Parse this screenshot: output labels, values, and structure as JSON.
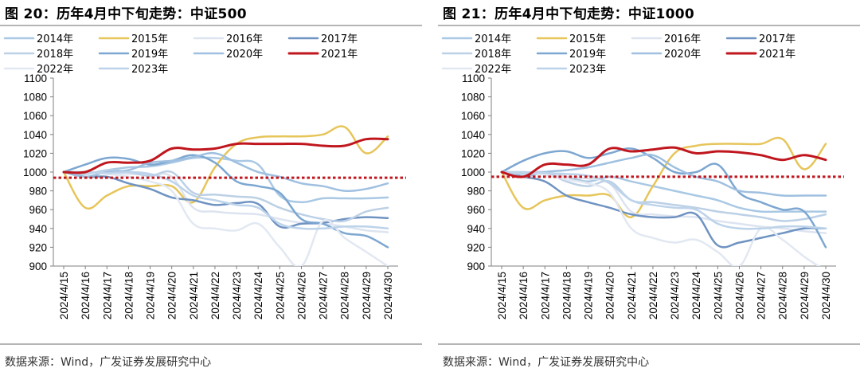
{
  "source": "数据来源：Wind，广发证券发展研究中心",
  "colors": {
    "2014": "#a9c8e4",
    "2015": "#e6c55a",
    "2016": "#dde4f0",
    "2017": "#6f93c2",
    "2018": "#bcd0e6",
    "2019": "#7da7d1",
    "2020": "#9fc0e0",
    "2021": "#c0161e",
    "2022": "#e2e8f2",
    "2023": "#bdd3ea",
    "ref": "#c0161e"
  },
  "chart_data": [
    {
      "type": "line",
      "title": "图 20：历年4月中下旬走势：中证500",
      "x": [
        "2024/4/15",
        "2024/4/16",
        "2024/4/17",
        "2024/4/18",
        "2024/4/19",
        "2024/4/20",
        "2024/4/21",
        "2024/4/22",
        "2024/4/23",
        "2024/4/24",
        "2024/4/25",
        "2024/4/26",
        "2024/4/27",
        "2024/4/28",
        "2024/4/29",
        "2024/4/30"
      ],
      "ylim": [
        900,
        1100
      ],
      "yticks": [
        900,
        920,
        940,
        960,
        980,
        1000,
        1020,
        1040,
        1060,
        1080,
        1100
      ],
      "reference_line": 994,
      "series": [
        {
          "name": "2014年",
          "color_key": "2014",
          "values": [
            1000,
            998,
            1002,
            1005,
            1006,
            1010,
            1015,
            1015,
            1012,
            1008,
            975,
            968,
            972,
            972,
            972,
            973
          ]
        },
        {
          "name": "2015年",
          "color_key": "2015",
          "values": [
            1000,
            962,
            975,
            985,
            985,
            985,
            968,
            1005,
            1030,
            1037,
            1038,
            1038,
            1040,
            1048,
            1020,
            1038
          ]
        },
        {
          "name": "2016年",
          "color_key": "2016",
          "values": [
            1000,
            1000,
            999,
            998,
            997,
            995,
            962,
            958,
            956,
            955,
            950,
            946,
            945,
            942,
            938,
            936
          ]
        },
        {
          "name": "2017年",
          "color_key": "2017",
          "values": [
            1000,
            995,
            995,
            988,
            982,
            973,
            970,
            965,
            967,
            966,
            942,
            945,
            946,
            950,
            952,
            951
          ]
        },
        {
          "name": "2018年",
          "color_key": "2018",
          "values": [
            1000,
            998,
            1002,
            1000,
            996,
            1000,
            978,
            976,
            974,
            972,
            962,
            955,
            950,
            948,
            958,
            962
          ]
        },
        {
          "name": "2019年",
          "color_key": "2019",
          "values": [
            1000,
            1008,
            1015,
            1014,
            1008,
            1012,
            1018,
            1010,
            990,
            985,
            978,
            950,
            945,
            935,
            932,
            920
          ]
        },
        {
          "name": "2020年",
          "color_key": "2020",
          "values": [
            1000,
            995,
            1000,
            1002,
            1010,
            1012,
            1016,
            1020,
            1010,
            1000,
            995,
            988,
            985,
            980,
            982,
            988
          ]
        },
        {
          "name": "2021年",
          "color_key": "2021",
          "values": [
            1000,
            1000,
            1010,
            1010,
            1012,
            1025,
            1024,
            1025,
            1030,
            1030,
            1030,
            1030,
            1028,
            1028,
            1035,
            1035
          ]
        },
        {
          "name": "2022年",
          "color_key": "2022",
          "values": [
            1000,
            1000,
            998,
            995,
            990,
            980,
            945,
            940,
            938,
            945,
            920,
            900,
            948,
            930,
            915,
            900
          ]
        },
        {
          "name": "2023年",
          "color_key": "2023",
          "values": [
            1000,
            1000,
            999,
            1000,
            998,
            990,
            975,
            970,
            965,
            962,
            945,
            940,
            940,
            942,
            942,
            940
          ]
        }
      ]
    },
    {
      "type": "line",
      "title": "图 21：历年4月中下旬走势：中证1000",
      "x": [
        "2024/4/15",
        "2024/4/16",
        "2024/4/17",
        "2024/4/18",
        "2024/4/19",
        "2024/4/20",
        "2024/4/21",
        "2024/4/22",
        "2024/4/23",
        "2024/4/24",
        "2024/4/25",
        "2024/4/26",
        "2024/4/27",
        "2024/4/28",
        "2024/4/29",
        "2024/4/30"
      ],
      "ylim": [
        900,
        1100
      ],
      "yticks": [
        900,
        920,
        940,
        960,
        980,
        1000,
        1020,
        1040,
        1060,
        1080,
        1100
      ],
      "reference_line": 995,
      "series": [
        {
          "name": "2014年",
          "color_key": "2014",
          "values": [
            1000,
            998,
            1000,
            995,
            990,
            995,
            990,
            985,
            980,
            975,
            970,
            962,
            958,
            958,
            958,
            958
          ]
        },
        {
          "name": "2015年",
          "color_key": "2015",
          "values": [
            1000,
            962,
            970,
            975,
            975,
            975,
            952,
            985,
            1020,
            1028,
            1030,
            1030,
            1030,
            1035,
            1003,
            1030
          ]
        },
        {
          "name": "2016年",
          "color_key": "2016",
          "values": [
            1000,
            1000,
            998,
            995,
            993,
            988,
            958,
            955,
            953,
            952,
            948,
            945,
            942,
            940,
            937,
            935
          ]
        },
        {
          "name": "2017年",
          "color_key": "2017",
          "values": [
            1000,
            995,
            990,
            975,
            968,
            962,
            955,
            952,
            952,
            955,
            922,
            925,
            930,
            935,
            940,
            940
          ]
        },
        {
          "name": "2018年",
          "color_key": "2018",
          "values": [
            1000,
            998,
            1000,
            990,
            985,
            990,
            970,
            968,
            965,
            962,
            958,
            955,
            952,
            948,
            950,
            955
          ]
        },
        {
          "name": "2019年",
          "color_key": "2019",
          "values": [
            1000,
            1012,
            1020,
            1022,
            1015,
            1020,
            1025,
            1015,
            1000,
            1000,
            1008,
            978,
            968,
            960,
            958,
            920
          ]
        },
        {
          "name": "2020年",
          "color_key": "2020",
          "values": [
            1000,
            995,
            1000,
            1002,
            1005,
            1010,
            1015,
            1018,
            1005,
            995,
            990,
            980,
            978,
            975,
            975,
            975
          ]
        },
        {
          "name": "2021年",
          "color_key": "2021",
          "values": [
            1000,
            995,
            1008,
            1008,
            1008,
            1025,
            1022,
            1024,
            1026,
            1020,
            1022,
            1021,
            1018,
            1013,
            1018,
            1013
          ]
        },
        {
          "name": "2022年",
          "color_key": "2022",
          "values": [
            1000,
            1000,
            997,
            992,
            988,
            978,
            940,
            930,
            925,
            928,
            915,
            900,
            940,
            928,
            910,
            895
          ]
        },
        {
          "name": "2023年",
          "color_key": "2023",
          "values": [
            1000,
            1000,
            999,
            998,
            996,
            988,
            970,
            965,
            962,
            960,
            945,
            940,
            940,
            942,
            942,
            940
          ]
        }
      ]
    }
  ]
}
